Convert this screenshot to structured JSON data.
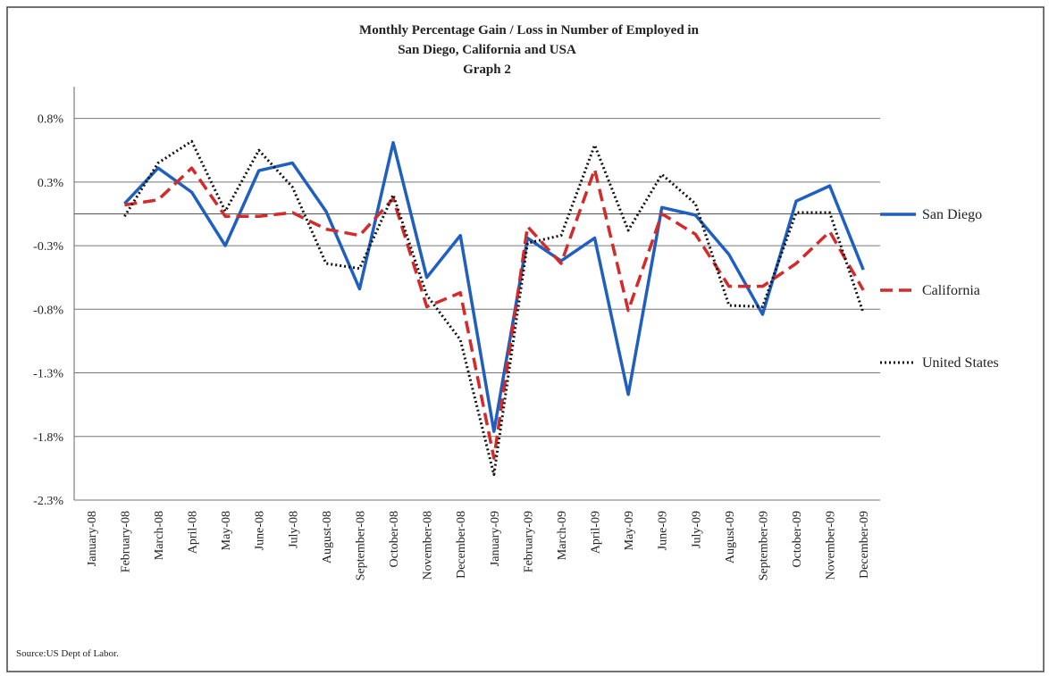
{
  "chart_data": {
    "type": "line",
    "title": "Monthly Percentage Gain / Loss in Number of Employed in",
    "subtitle": "San Diego, California and USA",
    "subtitle2": "Graph 2",
    "source": "Source:US Dept of Labor.",
    "categories": [
      "January-08",
      "February-08",
      "March-08",
      "April-08",
      "May-08",
      "June-08",
      "July-08",
      "August-08",
      "September-08",
      "October-08",
      "November-08",
      "December-08",
      "January-09",
      "February-09",
      "March-09",
      "April-09",
      "May-09",
      "June-09",
      "July-09",
      "August-09",
      "September-09",
      "October-09",
      "November-09",
      "December-09"
    ],
    "series": [
      {
        "name": "San Diego",
        "color": "#1f5fbf",
        "dash": "solid",
        "values": [
          null,
          0.08,
          0.36,
          0.17,
          -0.25,
          0.34,
          0.4,
          0.02,
          -0.59,
          0.56,
          -0.5,
          -0.17,
          -1.71,
          -0.19,
          -0.37,
          -0.19,
          -1.42,
          0.05,
          -0.01,
          -0.32,
          -0.79,
          0.1,
          0.22,
          -0.44
        ]
      },
      {
        "name": "California",
        "color": "#d42a2a",
        "dash": "dashed",
        "values": [
          null,
          0.07,
          0.11,
          0.36,
          -0.02,
          -0.02,
          0.01,
          -0.12,
          -0.17,
          0.12,
          -0.73,
          -0.62,
          -1.92,
          -0.1,
          -0.39,
          0.35,
          -0.76,
          0.0,
          -0.16,
          -0.57,
          -0.57,
          -0.39,
          -0.14,
          -0.6
        ]
      },
      {
        "name": "United States",
        "color": "#111111",
        "dash": "dotted",
        "values": [
          null,
          -0.02,
          0.4,
          0.57,
          0.02,
          0.5,
          0.21,
          -0.39,
          -0.43,
          0.15,
          -0.64,
          -0.99,
          -2.05,
          -0.23,
          -0.17,
          0.54,
          -0.13,
          0.31,
          0.08,
          -0.72,
          -0.73,
          0.01,
          0.01,
          -0.78
        ]
      }
    ],
    "ylim": [
      -2.25,
      1.0
    ],
    "yticks": [
      {
        "value": 0.75,
        "label": "0.8%"
      },
      {
        "value": 0.25,
        "label": "0.3%"
      },
      {
        "value": -0.25,
        "label": "-0.3%"
      },
      {
        "value": -0.75,
        "label": "-0.8%"
      },
      {
        "value": -1.25,
        "label": "-1.3%"
      },
      {
        "value": -1.75,
        "label": "-1.8%"
      },
      {
        "value": -2.25,
        "label": "-2.3%"
      }
    ],
    "grid": true
  }
}
